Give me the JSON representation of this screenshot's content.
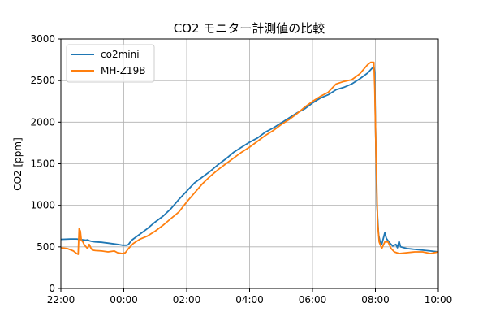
{
  "chart_data": {
    "type": "line",
    "title": "CO2 モニター計測値の比較",
    "xlabel": "",
    "ylabel": "CO2 [ppm]",
    "x_unit": "hours since 22:00",
    "x_ticks": [
      {
        "value": 0,
        "label": "22:00"
      },
      {
        "value": 2,
        "label": "00:00"
      },
      {
        "value": 4,
        "label": "02:00"
      },
      {
        "value": 6,
        "label": "04:00"
      },
      {
        "value": 8,
        "label": "06:00"
      },
      {
        "value": 10,
        "label": "08:00"
      },
      {
        "value": 12,
        "label": "10:00"
      }
    ],
    "y_ticks": [
      0,
      500,
      1000,
      1500,
      2000,
      2500,
      3000
    ],
    "xlim": [
      0,
      12
    ],
    "ylim": [
      0,
      3000
    ],
    "grid": true,
    "legend_position": "top-left",
    "series": [
      {
        "name": "co2mini",
        "color": "#1f77b4",
        "points": [
          [
            0,
            590
          ],
          [
            0.3,
            595
          ],
          [
            0.5,
            595
          ],
          [
            0.6,
            590
          ],
          [
            0.8,
            580
          ],
          [
            0.85,
            585
          ],
          [
            0.9,
            575
          ],
          [
            1.0,
            565
          ],
          [
            1.1,
            560
          ],
          [
            1.3,
            555
          ],
          [
            1.5,
            545
          ],
          [
            1.8,
            530
          ],
          [
            1.95,
            520
          ],
          [
            2.1,
            520
          ],
          [
            2.15,
            530
          ],
          [
            2.25,
            580
          ],
          [
            2.5,
            650
          ],
          [
            2.75,
            720
          ],
          [
            3.0,
            800
          ],
          [
            3.25,
            870
          ],
          [
            3.5,
            960
          ],
          [
            3.75,
            1070
          ],
          [
            4.0,
            1170
          ],
          [
            4.25,
            1270
          ],
          [
            4.5,
            1340
          ],
          [
            4.75,
            1410
          ],
          [
            5.0,
            1490
          ],
          [
            5.25,
            1560
          ],
          [
            5.5,
            1640
          ],
          [
            5.75,
            1700
          ],
          [
            6.0,
            1760
          ],
          [
            6.25,
            1810
          ],
          [
            6.5,
            1880
          ],
          [
            6.75,
            1930
          ],
          [
            7.0,
            1990
          ],
          [
            7.25,
            2050
          ],
          [
            7.5,
            2110
          ],
          [
            7.75,
            2160
          ],
          [
            8.0,
            2230
          ],
          [
            8.25,
            2290
          ],
          [
            8.5,
            2330
          ],
          [
            8.75,
            2390
          ],
          [
            9.0,
            2420
          ],
          [
            9.25,
            2460
          ],
          [
            9.5,
            2520
          ],
          [
            9.75,
            2590
          ],
          [
            9.9,
            2650
          ],
          [
            9.95,
            2670
          ],
          [
            9.98,
            2600
          ],
          [
            10.0,
            2000
          ],
          [
            10.05,
            1000
          ],
          [
            10.1,
            650
          ],
          [
            10.15,
            560
          ],
          [
            10.2,
            530
          ],
          [
            10.25,
            600
          ],
          [
            10.3,
            670
          ],
          [
            10.35,
            600
          ],
          [
            10.45,
            550
          ],
          [
            10.55,
            510
          ],
          [
            10.65,
            530
          ],
          [
            10.7,
            490
          ],
          [
            10.75,
            570
          ],
          [
            10.8,
            500
          ],
          [
            11.0,
            480
          ],
          [
            11.25,
            470
          ],
          [
            11.5,
            460
          ],
          [
            11.75,
            450
          ],
          [
            12.0,
            440
          ]
        ]
      },
      {
        "name": "MH-Z19B",
        "color": "#ff7f0e",
        "points": [
          [
            0,
            490
          ],
          [
            0.2,
            480
          ],
          [
            0.4,
            450
          ],
          [
            0.5,
            420
          ],
          [
            0.55,
            410
          ],
          [
            0.58,
            720
          ],
          [
            0.62,
            690
          ],
          [
            0.65,
            580
          ],
          [
            0.7,
            560
          ],
          [
            0.75,
            520
          ],
          [
            0.8,
            500
          ],
          [
            0.85,
            480
          ],
          [
            0.9,
            530
          ],
          [
            0.95,
            490
          ],
          [
            1.0,
            460
          ],
          [
            1.1,
            455
          ],
          [
            1.3,
            450
          ],
          [
            1.5,
            440
          ],
          [
            1.7,
            450
          ],
          [
            1.8,
            430
          ],
          [
            1.95,
            420
          ],
          [
            2.05,
            430
          ],
          [
            2.15,
            480
          ],
          [
            2.3,
            540
          ],
          [
            2.5,
            590
          ],
          [
            2.75,
            630
          ],
          [
            3.0,
            690
          ],
          [
            3.25,
            760
          ],
          [
            3.5,
            840
          ],
          [
            3.75,
            920
          ],
          [
            4.0,
            1040
          ],
          [
            4.25,
            1150
          ],
          [
            4.5,
            1260
          ],
          [
            4.75,
            1350
          ],
          [
            5.0,
            1430
          ],
          [
            5.25,
            1500
          ],
          [
            5.5,
            1570
          ],
          [
            5.75,
            1640
          ],
          [
            6.0,
            1700
          ],
          [
            6.25,
            1770
          ],
          [
            6.5,
            1840
          ],
          [
            6.75,
            1900
          ],
          [
            7.0,
            1970
          ],
          [
            7.25,
            2030
          ],
          [
            7.5,
            2100
          ],
          [
            7.75,
            2180
          ],
          [
            8.0,
            2250
          ],
          [
            8.25,
            2310
          ],
          [
            8.5,
            2360
          ],
          [
            8.75,
            2460
          ],
          [
            9.0,
            2490
          ],
          [
            9.25,
            2510
          ],
          [
            9.5,
            2580
          ],
          [
            9.75,
            2690
          ],
          [
            9.85,
            2720
          ],
          [
            9.95,
            2720
          ],
          [
            9.98,
            2400
          ],
          [
            10.02,
            1600
          ],
          [
            10.07,
            800
          ],
          [
            10.12,
            560
          ],
          [
            10.2,
            480
          ],
          [
            10.3,
            560
          ],
          [
            10.4,
            560
          ],
          [
            10.5,
            480
          ],
          [
            10.6,
            440
          ],
          [
            10.75,
            420
          ],
          [
            11.0,
            430
          ],
          [
            11.25,
            440
          ],
          [
            11.5,
            440
          ],
          [
            11.75,
            420
          ],
          [
            12.0,
            440
          ]
        ]
      }
    ]
  }
}
